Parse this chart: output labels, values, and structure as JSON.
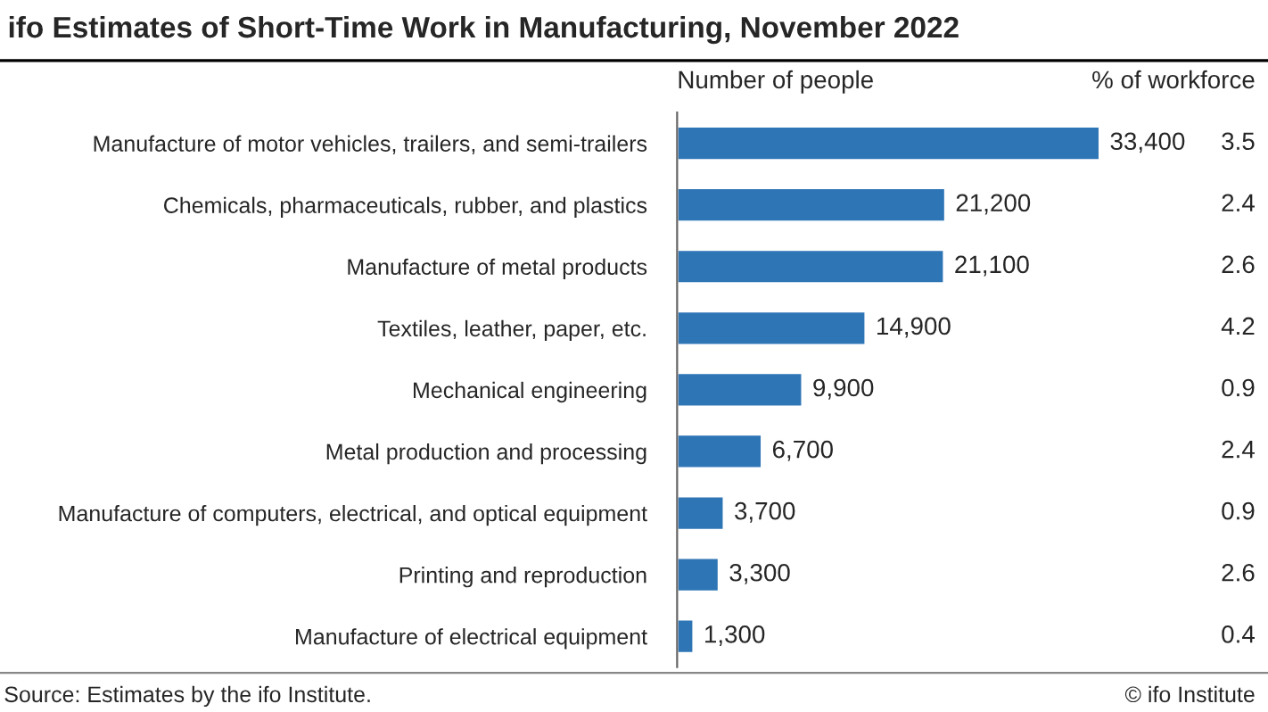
{
  "chart_data": {
    "type": "bar",
    "orientation": "horizontal",
    "title": "ifo Estimates of Short-Time Work in Manufacturing, November 2022",
    "categories": [
      "Manufacture of motor vehicles, trailers, and semi-trailers",
      "Chemicals, pharmaceuticals, rubber, and plastics",
      "Manufacture of metal products",
      "Textiles, leather, paper, etc.",
      "Mechanical engineering",
      "Metal production and processing",
      "Manufacture of computers, electrical, and optical equipment",
      "Printing and reproduction",
      "Manufacture of electrical equipment"
    ],
    "values": [
      33400,
      21200,
      21100,
      14900,
      9900,
      6700,
      3700,
      3300,
      1300
    ],
    "value_labels": [
      "33,400",
      "21,200",
      "21,100",
      "14,900",
      "9,900",
      "6,700",
      "3,700",
      "3,300",
      "1,300"
    ],
    "color": "#2e75b6",
    "annotations": [
      "Number of people",
      "% of workforce",
      "Source: Estimates by the ifo Institute.",
      "© ifo Institute",
      "3.5",
      "2.4",
      "2.6",
      "4.2",
      "0.9",
      "2.4",
      "0.9",
      "2.6",
      "0.4"
    ],
    "grid": false,
    "legend": false
  }
}
